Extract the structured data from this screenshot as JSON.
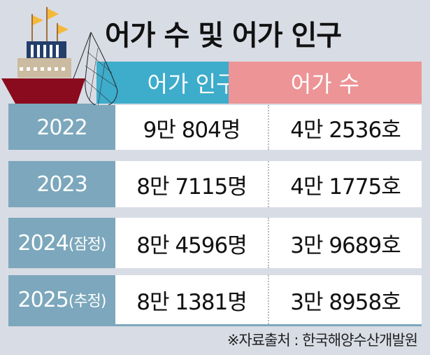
{
  "title": "어가 수 및 어가 인구",
  "chart_data": {
    "type": "table",
    "columns": [
      "",
      "어가 인구",
      "어가 수"
    ],
    "rows": [
      {
        "year": "2022",
        "note": "",
        "population": "9만 804명",
        "households": "4만 2536호"
      },
      {
        "year": "2023",
        "note": "",
        "population": "8만 7115명",
        "households": "4만 1775호"
      },
      {
        "year": "2024",
        "note": "(잠정)",
        "population": "8만 4596명",
        "households": "3만 9689호"
      },
      {
        "year": "2025",
        "note": "(추정)",
        "population": "8만 1381명",
        "households": "3만 8958호"
      }
    ]
  },
  "source": "※자료출처 : 한국해양수산개발원",
  "colors": {
    "population_header": "#3eaccb",
    "households_header": "#ed9496",
    "year_cell": "#7ca7bc",
    "background": "#d8dce4"
  },
  "icons": [
    "fishing-boat-icon",
    "fishing-net-icon"
  ]
}
